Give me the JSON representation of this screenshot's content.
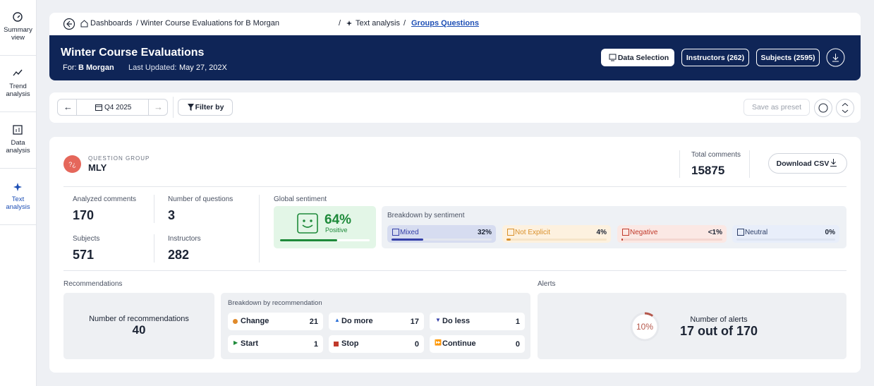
{
  "sidebar": [
    "Summary view",
    "Trend analysis",
    "Data analysis",
    "Text analysis"
  ],
  "breadcrumb": [
    "Dashboards",
    "/ Winter Course Evaluations for B Morgan",
    "/",
    "Text analysis",
    "/",
    "Groups Questions"
  ],
  "header": {
    "title": "Winter Course Evaluations",
    "for_label": "For:",
    "for_value": "B Morgan",
    "updated_label": "Last Updated:",
    "updated_value": "May 27, 202X",
    "buttons": [
      "Data Selection",
      "Instructors (262)",
      "Subjects (2595)"
    ]
  },
  "toolbar": {
    "period": "Q4 2025",
    "filter": "Filter by",
    "preset": "Save as preset"
  },
  "group": {
    "kicker": "QUESTION GROUP",
    "name": "MLY",
    "total_label": "Total comments",
    "total_value": "15875",
    "download": "Download CSV"
  },
  "stats": [
    {
      "label": "Analyzed comments",
      "value": "170"
    },
    {
      "label": "Number of questions",
      "value": "3"
    },
    {
      "label": "Subjects",
      "value": "571"
    },
    {
      "label": "Instructors",
      "value": "282"
    }
  ],
  "sentiment": {
    "title": "Global sentiment",
    "value": 64,
    "label": "64%",
    "name": "Positive",
    "breakdown_title": "Breakdown by sentiment",
    "items": [
      {
        "name": "Mixed",
        "value": 32,
        "label": "32%"
      },
      {
        "name": "Not Explicit",
        "value": 4,
        "label": "4%"
      },
      {
        "name": "Negative",
        "value": 0.5,
        "label": "<1%"
      },
      {
        "name": "Neutral",
        "value": 0,
        "label": "0%"
      }
    ]
  },
  "recommendations": {
    "title": "Recommendations",
    "count_label": "Number of recommendations",
    "count": "40",
    "breakdown_title": "Breakdown by recommendation",
    "items": [
      {
        "name": "Change",
        "value": "21"
      },
      {
        "name": "Do more",
        "value": "17"
      },
      {
        "name": "Do less",
        "value": "1"
      },
      {
        "name": "Start",
        "value": "1"
      },
      {
        "name": "Stop",
        "value": "0"
      },
      {
        "name": "Continue",
        "value": "0"
      }
    ]
  },
  "alerts": {
    "title": "Alerts",
    "value": 10,
    "label": "10%",
    "count_label": "Number of alerts",
    "count": "17 out of 170"
  }
}
